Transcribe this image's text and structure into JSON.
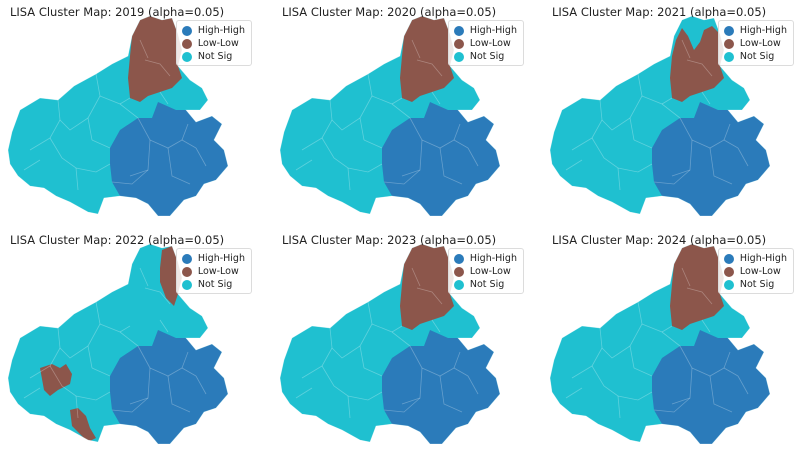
{
  "colors": {
    "high_high": "#2b7bba",
    "low_low": "#8c564b",
    "not_sig": "#1fc0d0"
  },
  "legend": [
    "High-High",
    "Low-Low",
    "Not Sig"
  ],
  "panels": [
    {
      "title": "LISA Cluster Map: 2019 (alpha=0.05)",
      "year": "2019",
      "low_low_shape": "north"
    },
    {
      "title": "LISA Cluster Map: 2020 (alpha=0.05)",
      "year": "2020",
      "low_low_shape": "north"
    },
    {
      "title": "LISA Cluster Map: 2021 (alpha=0.05)",
      "year": "2021",
      "low_low_shape": "north-partial"
    },
    {
      "title": "LISA Cluster Map: 2022 (alpha=0.05)",
      "year": "2022",
      "low_low_shape": "northeast-and-west"
    },
    {
      "title": "LISA Cluster Map: 2023 (alpha=0.05)",
      "year": "2023",
      "low_low_shape": "north"
    },
    {
      "title": "LISA Cluster Map: 2024 (alpha=0.05)",
      "year": "2024",
      "low_low_shape": "north"
    }
  ]
}
